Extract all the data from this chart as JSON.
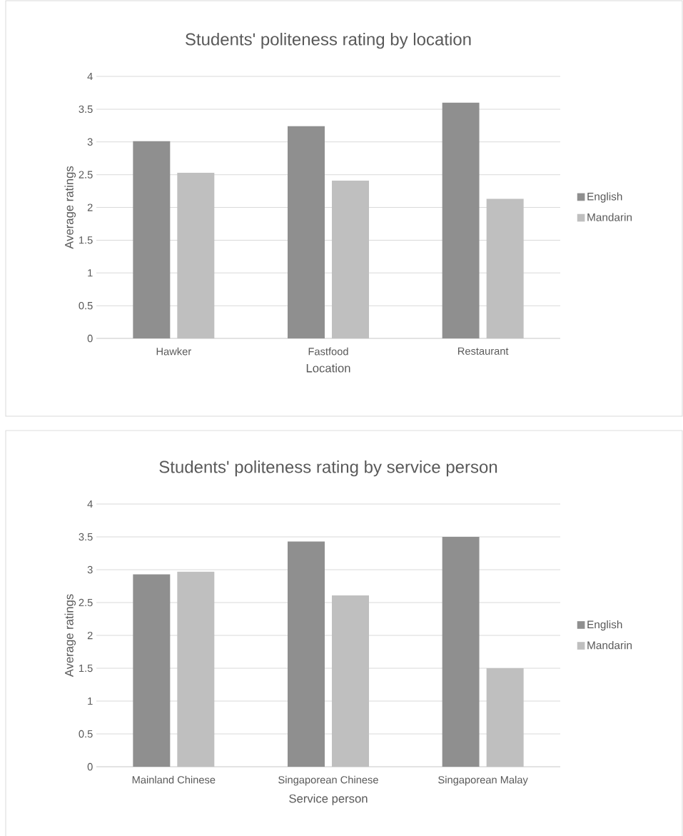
{
  "chart_data": [
    {
      "type": "bar",
      "title": "Students' politeness rating by location",
      "xlabel": "Location",
      "ylabel": "Average ratings",
      "categories": [
        "Hawker",
        "Fastfood",
        "Restaurant"
      ],
      "series": [
        {
          "name": "English",
          "color": "#8f8f8f",
          "values": [
            3.01,
            3.24,
            3.6
          ]
        },
        {
          "name": "Mandarin",
          "color": "#bfbfbf",
          "values": [
            2.53,
            2.41,
            2.13
          ]
        }
      ],
      "ylim": [
        0,
        4
      ],
      "yticks": [
        0,
        0.5,
        1,
        1.5,
        2,
        2.5,
        3,
        3.5,
        4
      ],
      "grid": "y",
      "legend": "right"
    },
    {
      "type": "bar",
      "title": "Students' politeness rating by service person",
      "xlabel": "Service person",
      "ylabel": "Average ratings",
      "categories": [
        "Mainland Chinese",
        "Singaporean Chinese",
        "Singaporean Malay"
      ],
      "series": [
        {
          "name": "English",
          "color": "#8f8f8f",
          "values": [
            2.93,
            3.43,
            3.5
          ]
        },
        {
          "name": "Mandarin",
          "color": "#bfbfbf",
          "values": [
            2.97,
            2.61,
            1.5
          ]
        }
      ],
      "ylim": [
        0,
        4
      ],
      "yticks": [
        0,
        0.5,
        1,
        1.5,
        2,
        2.5,
        3,
        3.5,
        4
      ],
      "grid": "y",
      "legend": "right"
    }
  ]
}
